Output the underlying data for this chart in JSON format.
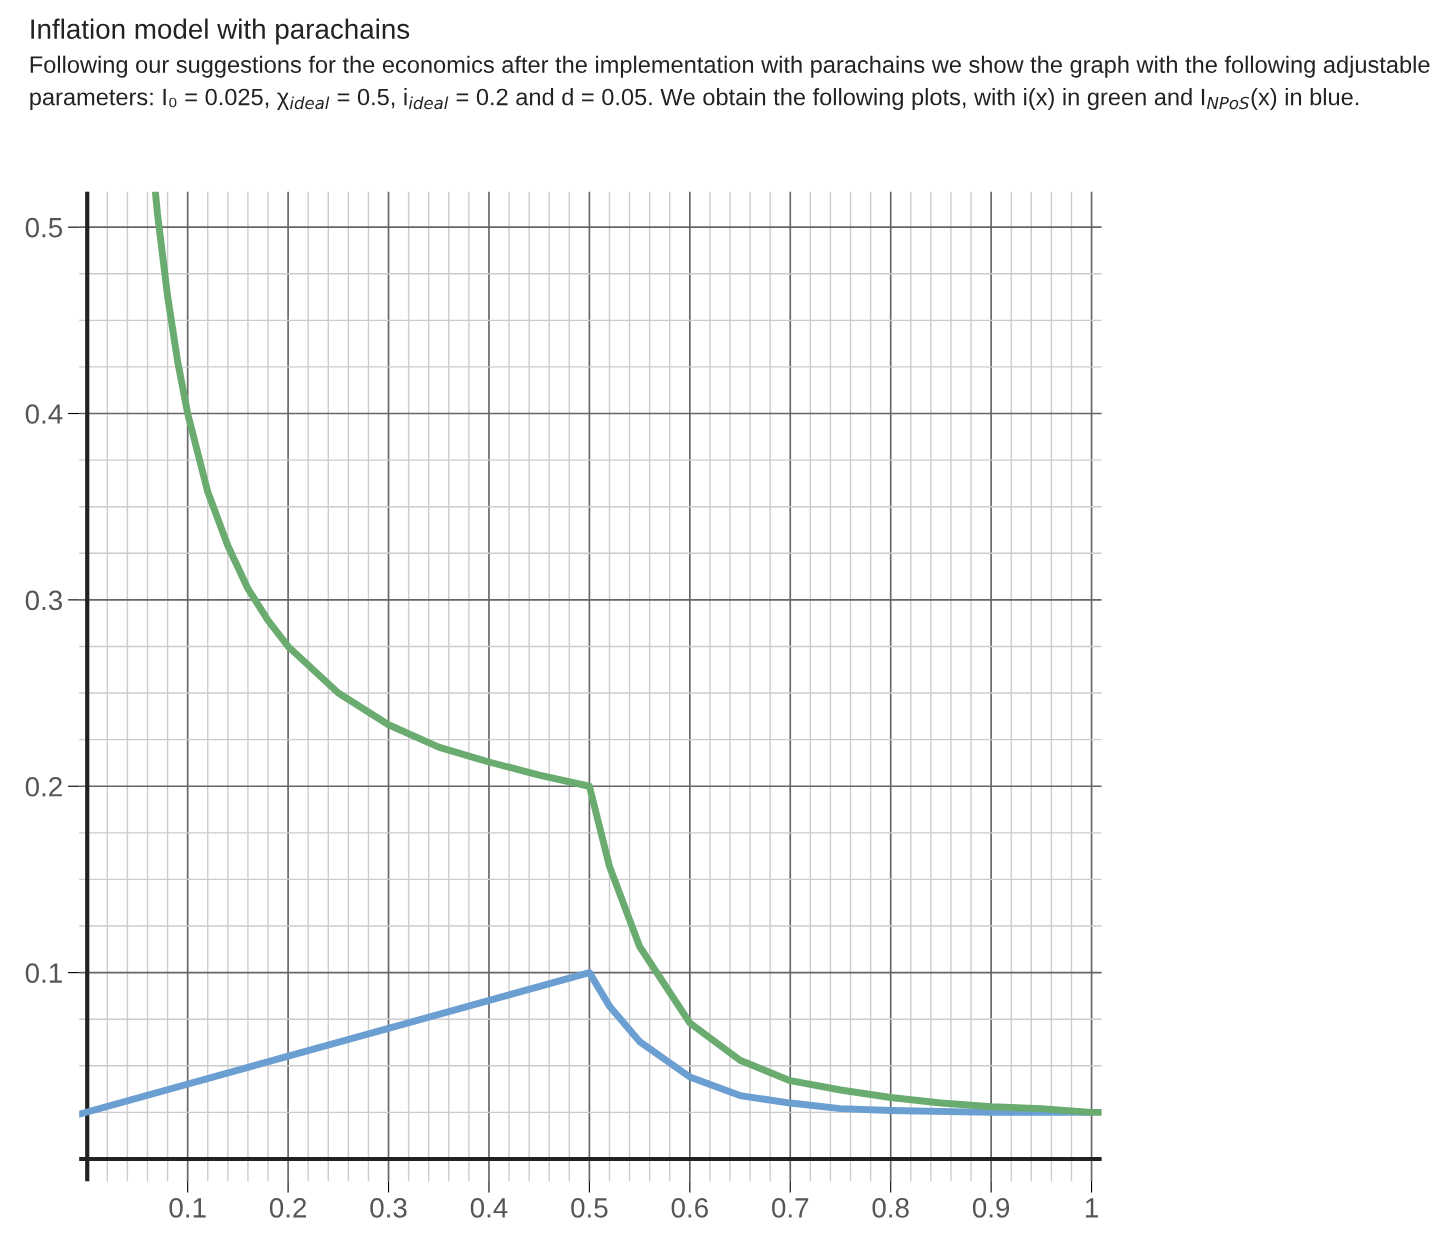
{
  "chart_data": {
    "type": "line",
    "title": "Inflation model with parachains",
    "subtitle": "Following our suggestions for the economics after the implementation with parachains we show the graph with the following adjustable parameters: I₀ = 0.025, χ$_{ideal}$ = 0.5, i$_{ideal}$ = 0.2 and d = 0.05. We obtain the following plots, with i(x) in green and I$_{NPoS}$(x) in blue.",
    "series": [
      {
        "color": "#6aac70",
        "x": [
          0.068,
          0.07,
          0.08,
          0.09,
          0.1,
          0.12,
          0.14,
          0.16,
          0.18,
          0.2,
          0.25,
          0.3,
          0.35,
          0.4,
          0.45,
          0.5,
          0.52,
          0.55,
          0.6,
          0.65,
          0.7,
          0.75,
          0.8,
          0.85,
          0.9,
          0.95,
          1.0,
          1.01
        ],
        "values": [
          0.518,
          0.507,
          0.463,
          0.428,
          0.4,
          0.358,
          0.329,
          0.306,
          0.289,
          0.275,
          0.25,
          0.233,
          0.221,
          0.213,
          0.206,
          0.2,
          0.157,
          0.114,
          0.073,
          0.053,
          0.042,
          0.037,
          0.033,
          0.03,
          0.028,
          0.027,
          0.025,
          0.025
        ]
      },
      {
        "color": "#6b9fd2",
        "x": [
          -0.008,
          0.5,
          0.52,
          0.55,
          0.6,
          0.65,
          0.7,
          0.75,
          0.8,
          0.9,
          1.0
        ],
        "values": [
          0.024,
          0.1,
          0.082,
          0.063,
          0.044,
          0.034,
          0.03,
          0.027,
          0.026,
          0.025,
          0.025
        ]
      }
    ],
    "xlim": [
      -0.008,
      1.01
    ],
    "ylim": [
      -0.012,
      0.519
    ],
    "xticks": [
      0.1,
      0.2,
      0.3,
      0.4,
      0.5,
      0.6,
      0.7,
      0.8,
      0.9,
      1
    ],
    "yticks": [
      0.1,
      0.2,
      0.3,
      0.4,
      0.5
    ],
    "grid": true,
    "legend": false,
    "marker": "none",
    "line_style": "solid"
  }
}
